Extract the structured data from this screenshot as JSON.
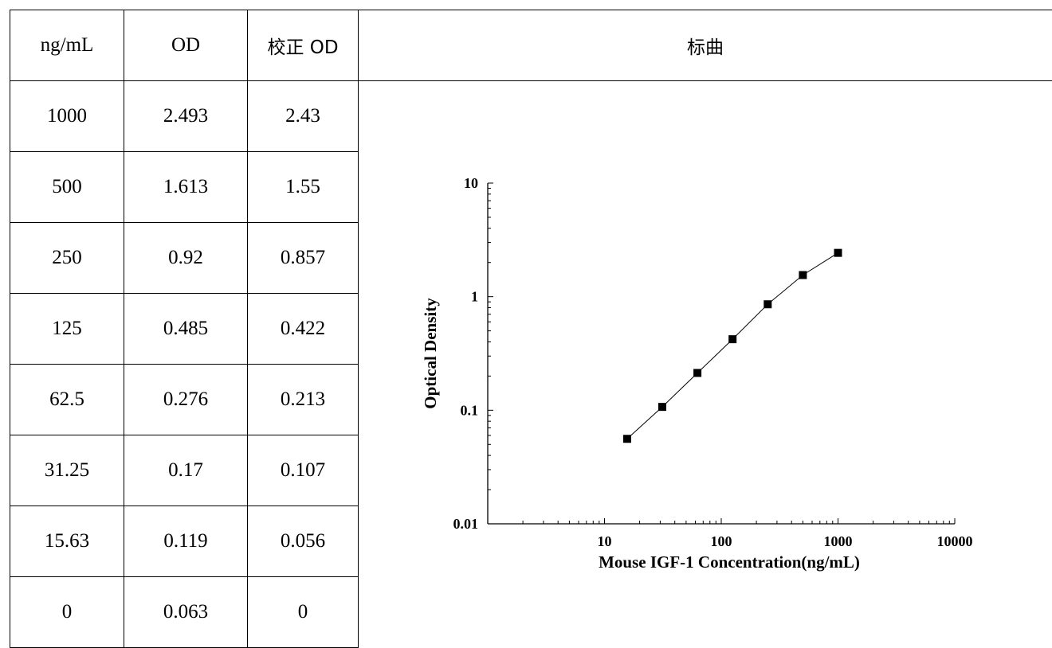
{
  "table": {
    "headers": [
      "ng/mL",
      "OD",
      "校正 OD",
      "标曲"
    ],
    "rows": [
      [
        "1000",
        "2.493",
        "2.43"
      ],
      [
        "500",
        "1.613",
        "1.55"
      ],
      [
        "250",
        "0.92",
        "0.857"
      ],
      [
        "125",
        "0.485",
        "0.422"
      ],
      [
        "62.5",
        "0.276",
        "0.213"
      ],
      [
        "31.25",
        "0.17",
        "0.107"
      ],
      [
        "15.63",
        "0.119",
        "0.056"
      ],
      [
        "0",
        "0.063",
        "0"
      ]
    ]
  },
  "chart_data": {
    "type": "line",
    "xlabel": "Mouse IGF-1 Concentration(ng/mL)",
    "ylabel": "Optical Density",
    "xscale": "log",
    "yscale": "log",
    "xlim": [
      1,
      10000
    ],
    "ylim": [
      0.01,
      10
    ],
    "x_ticks": [
      "10",
      "100",
      "1000",
      "10000"
    ],
    "y_ticks": [
      "0.01",
      "0.1",
      "1",
      "10"
    ],
    "grid": false,
    "marker": "square",
    "series": [
      {
        "x": [
          15.63,
          31.25,
          62.5,
          125,
          250,
          500,
          1000
        ],
        "y": [
          0.056,
          0.107,
          0.213,
          0.422,
          0.857,
          1.55,
          2.43
        ]
      }
    ]
  }
}
